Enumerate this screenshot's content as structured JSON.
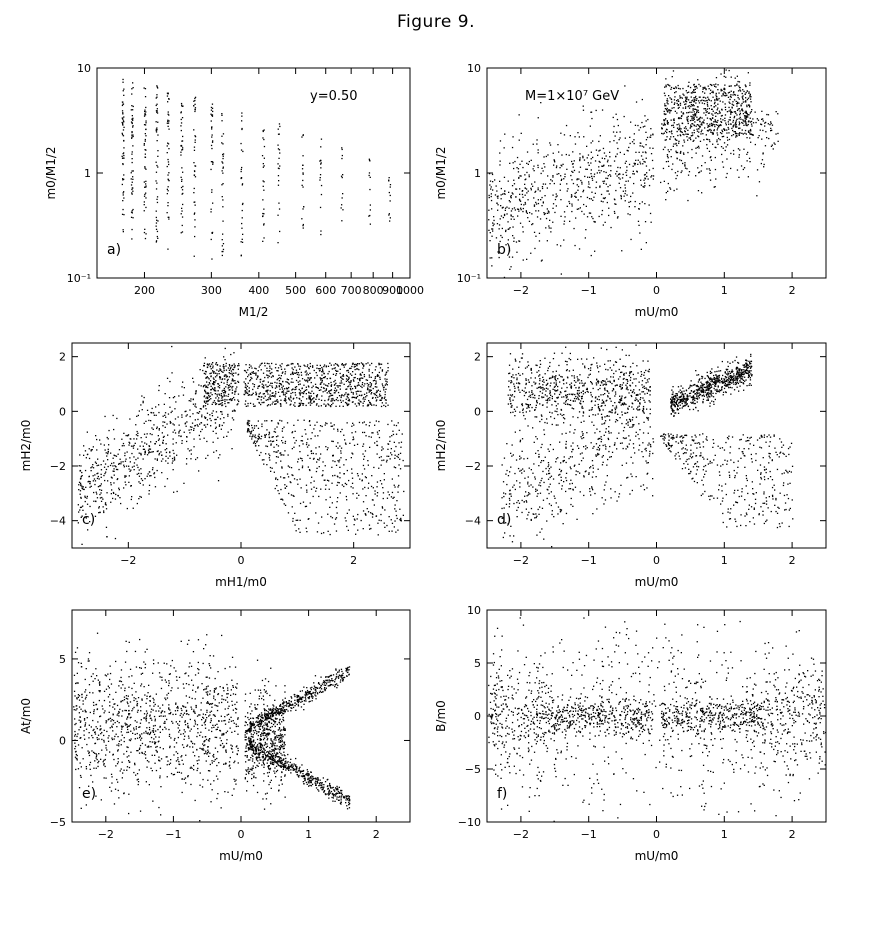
{
  "figure_title": "Figure 9.",
  "chart_data": [
    {
      "panel": "a)",
      "type": "scatter",
      "xlabel": "M1/2",
      "ylabel": "m0/M1/2",
      "xscale": "log",
      "yscale": "log",
      "xlim": [
        150,
        1000
      ],
      "ylim": [
        0.1,
        10
      ],
      "xticks": [
        200,
        300,
        400,
        500,
        600,
        700,
        800,
        900,
        1000
      ],
      "xtick_labels": [
        "200",
        "300",
        "400",
        "500",
        "600",
        "700",
        "800",
        "900",
        "1000"
      ],
      "yticks": [
        0.1,
        1,
        10
      ],
      "ytick_labels": [
        "10⁻¹",
        "1",
        "10"
      ],
      "annotation": "y=0.50",
      "description_points": [
        {
          "x": 175,
          "y_range": [
            0.25,
            8
          ]
        },
        {
          "x": 185,
          "y_range": [
            0.22,
            8
          ]
        },
        {
          "x": 200,
          "y_range": [
            0.2,
            7
          ]
        },
        {
          "x": 215,
          "y_range": [
            0.2,
            7
          ]
        },
        {
          "x": 230,
          "y_range": [
            0.18,
            6.5
          ]
        },
        {
          "x": 250,
          "y_range": [
            0.18,
            6
          ]
        },
        {
          "x": 270,
          "y_range": [
            0.15,
            5.5
          ]
        },
        {
          "x": 300,
          "y_range": [
            0.15,
            5
          ]
        },
        {
          "x": 320,
          "y_range": [
            0.15,
            5
          ]
        },
        {
          "x": 360,
          "y_range": [
            0.15,
            4
          ]
        },
        {
          "x": 410,
          "y_range": [
            0.2,
            3
          ]
        },
        {
          "x": 450,
          "y_range": [
            0.2,
            3
          ]
        },
        {
          "x": 520,
          "y_range": [
            0.25,
            2.5
          ]
        },
        {
          "x": 580,
          "y_range": [
            0.25,
            2.5
          ]
        },
        {
          "x": 660,
          "y_range": [
            0.25,
            2
          ]
        },
        {
          "x": 780,
          "y_range": [
            0.3,
            1.5
          ]
        },
        {
          "x": 880,
          "y_range": [
            0.35,
            1.2
          ]
        }
      ]
    },
    {
      "panel": "b)",
      "type": "scatter",
      "xlabel": "mU/m0",
      "ylabel": "m0/M1/2",
      "yscale": "log",
      "xlim": [
        -2.5,
        2.5
      ],
      "ylim": [
        0.1,
        10
      ],
      "xticks": [
        -2,
        -1,
        0,
        1,
        2
      ],
      "xtick_labels": [
        "−2",
        "−1",
        "0",
        "1",
        "2"
      ],
      "yticks": [
        0.1,
        1,
        10
      ],
      "ytick_labels": [
        "10⁻¹",
        "1",
        "10"
      ],
      "annotation": "M=1×10⁷ GeV"
    },
    {
      "panel": "c)",
      "type": "scatter",
      "xlabel": "mH1/m0",
      "ylabel": "mH2/m0",
      "xlim": [
        -3,
        3
      ],
      "ylim": [
        -5,
        2.5
      ],
      "xticks": [
        -2,
        0,
        2
      ],
      "xtick_labels": [
        "−2",
        "0",
        "2"
      ],
      "yticks": [
        -4,
        -2,
        0,
        2
      ],
      "ytick_labels": [
        "−4",
        "−2",
        "0",
        "2"
      ]
    },
    {
      "panel": "d)",
      "type": "scatter",
      "xlabel": "mU/m0",
      "ylabel": "mH2/m0",
      "xlim": [
        -2.5,
        2.5
      ],
      "ylim": [
        -5,
        2.5
      ],
      "xticks": [
        -2,
        -1,
        0,
        1,
        2
      ],
      "xtick_labels": [
        "−2",
        "−1",
        "0",
        "1",
        "2"
      ],
      "yticks": [
        -4,
        -2,
        0,
        2
      ],
      "ytick_labels": [
        "−4",
        "−2",
        "0",
        "2"
      ]
    },
    {
      "panel": "e)",
      "type": "scatter",
      "xlabel": "mU/m0",
      "ylabel": "At/m0",
      "xlim": [
        -2.5,
        2.5
      ],
      "ylim": [
        -5,
        8
      ],
      "xticks": [
        -2,
        -1,
        0,
        1,
        2
      ],
      "xtick_labels": [
        "−2",
        "−1",
        "0",
        "1",
        "2"
      ],
      "yticks": [
        -5,
        0,
        5
      ],
      "ytick_labels": [
        "−5",
        "0",
        "5"
      ]
    },
    {
      "panel": "f)",
      "type": "scatter",
      "xlabel": "mU/m0",
      "ylabel": "B/m0",
      "xlim": [
        -2.5,
        2.5
      ],
      "ylim": [
        -10,
        10
      ],
      "xticks": [
        -2,
        -1,
        0,
        1,
        2
      ],
      "xtick_labels": [
        "−2",
        "−1",
        "0",
        "1",
        "2"
      ],
      "yticks": [
        -10,
        -5,
        0,
        5,
        10
      ],
      "ytick_labels": [
        "−10",
        "−5",
        "0",
        "5",
        "10"
      ]
    }
  ]
}
